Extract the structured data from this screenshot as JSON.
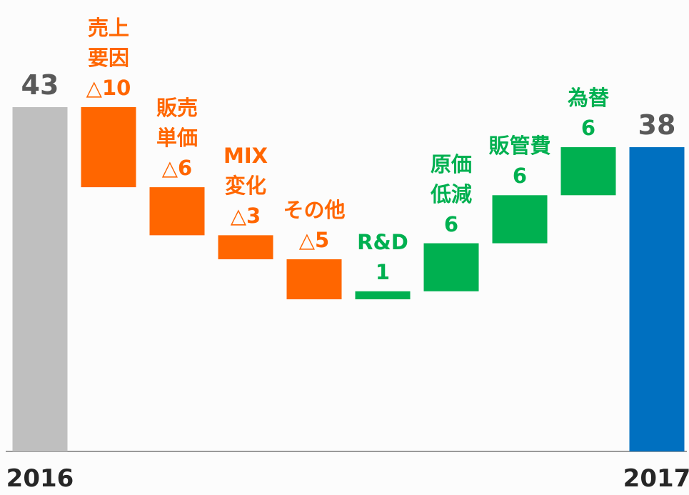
{
  "chart_data": {
    "type": "waterfall",
    "categories": [
      "2016",
      "売上\n要因",
      "販売\n単価",
      "MIX\n変化",
      "その他",
      "R&D",
      "原価\n低減",
      "販管費",
      "為替",
      "2017"
    ],
    "values": [
      43,
      -10,
      -6,
      -3,
      -5,
      1,
      6,
      6,
      6,
      38
    ],
    "value_labels": [
      "43",
      "△10",
      "△6",
      "△3",
      "△5",
      "1",
      "6",
      "6",
      "6",
      "38"
    ],
    "colors": [
      "#bfbfbf",
      "#ff6600",
      "#ff6600",
      "#ff6600",
      "#ff6600",
      "#00b050",
      "#00b050",
      "#00b050",
      "#00b050",
      "#0070c0"
    ],
    "ylim": [
      0,
      43
    ]
  }
}
